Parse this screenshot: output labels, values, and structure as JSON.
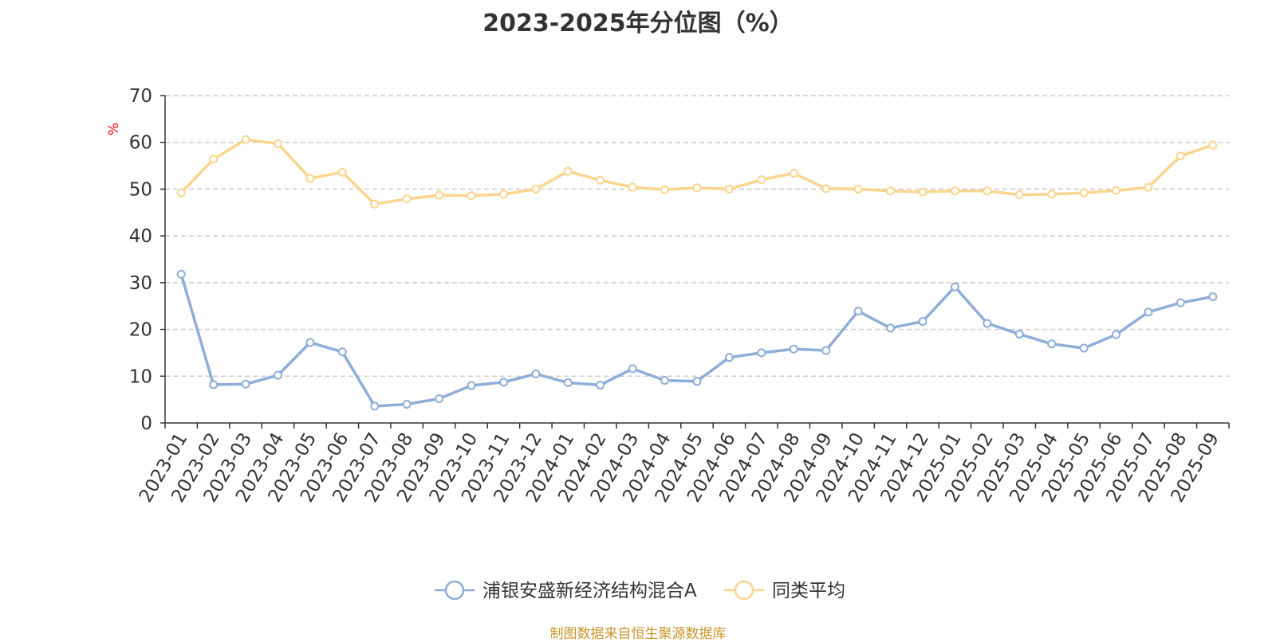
{
  "chart_data": {
    "type": "line",
    "title": "2023-2025年分位图（%）",
    "ylabel": "%",
    "ylim": [
      0,
      70
    ],
    "yticks": [
      0,
      10,
      20,
      30,
      40,
      50,
      60,
      70
    ],
    "grid": true,
    "legend_position": "bottom",
    "categories": [
      "2023-01",
      "2023-02",
      "2023-03",
      "2023-04",
      "2023-05",
      "2023-06",
      "2023-07",
      "2023-08",
      "2023-09",
      "2023-10",
      "2023-11",
      "2023-12",
      "2024-01",
      "2024-02",
      "2024-03",
      "2024-04",
      "2024-05",
      "2024-06",
      "2024-07",
      "2024-08",
      "2024-09",
      "2024-10",
      "2024-11",
      "2024-12",
      "2025-01",
      "2025-02",
      "2025-03",
      "2025-04",
      "2025-05",
      "2025-06",
      "2025-07",
      "2025-08",
      "2025-09"
    ],
    "series": [
      {
        "name": "浦银安盛新经济结构混合A",
        "color": "#8eadd9",
        "values": [
          31.8,
          8.2,
          8.3,
          10.2,
          17.2,
          15.2,
          3.6,
          4.0,
          5.2,
          8.0,
          8.7,
          10.5,
          8.6,
          8.1,
          11.6,
          9.1,
          8.9,
          14.0,
          15.0,
          15.8,
          15.5,
          23.9,
          20.3,
          21.7,
          29.1,
          21.3,
          19.0,
          16.9,
          16.0,
          18.9,
          23.7,
          25.7,
          27.0
        ]
      },
      {
        "name": "同类平均",
        "color": "#fbd58e",
        "values": [
          49.2,
          56.4,
          60.6,
          59.7,
          52.3,
          53.6,
          46.8,
          47.9,
          48.7,
          48.6,
          48.9,
          50.0,
          53.8,
          51.9,
          50.4,
          49.9,
          50.3,
          50.0,
          52.0,
          53.4,
          50.1,
          50.0,
          49.6,
          49.4,
          49.6,
          49.6,
          48.8,
          48.9,
          49.2,
          49.7,
          50.4,
          57.1,
          59.4
        ]
      }
    ],
    "source_note": "制图数据来自恒生聚源数据库"
  }
}
